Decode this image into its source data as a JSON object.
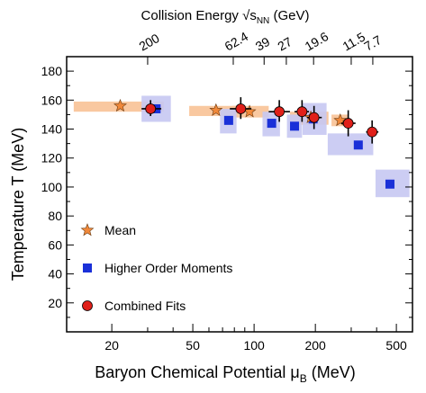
{
  "chart_data": {
    "type": "scatter",
    "top_title_prefix": "Collision Energy ",
    "top_title_sqrt": "√s",
    "top_title_sub": "NN",
    "top_title_suffix": " (GeV)",
    "xlabel_main": "Baryon Chemical Potential μ",
    "xlabel_sub": "B",
    "xlabel_unit": " (MeV)",
    "ylabel": "Temperature T (MeV)",
    "x_scale": "log",
    "xlim": [
      12,
      600
    ],
    "ylim": [
      0,
      190
    ],
    "x_ticks_labeled": [
      20,
      50,
      100,
      200,
      500
    ],
    "x_tick_labels": [
      "20",
      "50",
      "100",
      "200",
      "500"
    ],
    "y_ticks": [
      20,
      40,
      60,
      80,
      100,
      120,
      140,
      160,
      180
    ],
    "y_tick_labels": [
      "20",
      "40",
      "60",
      "80",
      "100",
      "120",
      "140",
      "160",
      "180"
    ],
    "top_axis": {
      "positions_mu": [
        30,
        79,
        112,
        144,
        196,
        300,
        383
      ],
      "labels": [
        "200",
        "62.4",
        "39",
        "27",
        "19.6",
        "11.5",
        "7.7"
      ]
    },
    "legend": {
      "placement": "bottom-left",
      "entries": [
        "Mean",
        "Higher Order Moments",
        "Combined Fits"
      ]
    },
    "colors": {
      "mean": "#f0883a",
      "mean_band": "#f9c8a0",
      "moments": "#1a30d8",
      "moments_band": "#c6c8f2",
      "combined": "#e0201a",
      "errorbar": "#000000"
    },
    "series": [
      {
        "name": "Mean",
        "marker": "star",
        "points": [
          {
            "x": 22,
            "y": 156,
            "band_x": [
              13,
              36
            ],
            "band_y": [
              152,
              159
            ]
          },
          {
            "x": 65,
            "y": 153,
            "band_x": [
              48,
              82
            ],
            "band_y": [
              149,
              156
            ]
          },
          {
            "x": 95,
            "y": 152,
            "band_x": [
              78,
              118
            ],
            "band_y": [
              148,
              156
            ]
          },
          {
            "x": 190,
            "y": 148,
            "band_x": [
              150,
              232
            ],
            "band_y": [
              143,
              152
            ]
          },
          {
            "x": 265,
            "y": 146,
            "band_x": [
              240,
              290
            ],
            "band_y": [
              142,
              150
            ]
          }
        ]
      },
      {
        "name": "Higher Order Moments",
        "marker": "square",
        "points": [
          {
            "x": 33,
            "y": 154,
            "band_x": [
              28,
              39
            ],
            "band_y": [
              145,
              163
            ]
          },
          {
            "x": 75,
            "y": 146,
            "band_x": [
              68,
              82
            ],
            "band_y": [
              137,
              154
            ]
          },
          {
            "x": 122,
            "y": 144,
            "band_x": [
              110,
              134
            ],
            "band_y": [
              135,
              152
            ]
          },
          {
            "x": 158,
            "y": 142,
            "band_x": [
              145,
              172
            ],
            "band_y": [
              134,
              150
            ]
          },
          {
            "x": 195,
            "y": 147,
            "band_x": [
              173,
              227
            ],
            "band_y": [
              136,
              158
            ]
          },
          {
            "x": 325,
            "y": 129,
            "band_x": [
              230,
              385
            ],
            "band_y": [
              122,
              137
            ]
          },
          {
            "x": 465,
            "y": 102,
            "band_x": [
              395,
              580
            ],
            "band_y": [
              93,
              112
            ]
          }
        ]
      },
      {
        "name": "Combined Fits",
        "marker": "circle",
        "points": [
          {
            "x": 31,
            "y": 154,
            "xerr": [
              28,
              35
            ],
            "yerr": [
              149,
              160
            ]
          },
          {
            "x": 86,
            "y": 154,
            "xerr": [
              76,
              97
            ],
            "yerr": [
              147,
              162
            ]
          },
          {
            "x": 133,
            "y": 152,
            "xerr": [
              118,
              150
            ],
            "yerr": [
              145,
              160
            ]
          },
          {
            "x": 172,
            "y": 152,
            "xerr": [
              158,
              186
            ],
            "yerr": [
              145,
              160
            ]
          },
          {
            "x": 197,
            "y": 148,
            "xerr": [
              182,
              215
            ],
            "yerr": [
              140,
              156
            ]
          },
          {
            "x": 290,
            "y": 144,
            "xerr": [
              268,
              315
            ],
            "yerr": [
              135,
              153
            ]
          },
          {
            "x": 380,
            "y": 138,
            "xerr": [
              355,
              408
            ],
            "yerr": [
              130,
              146
            ]
          }
        ]
      }
    ]
  }
}
